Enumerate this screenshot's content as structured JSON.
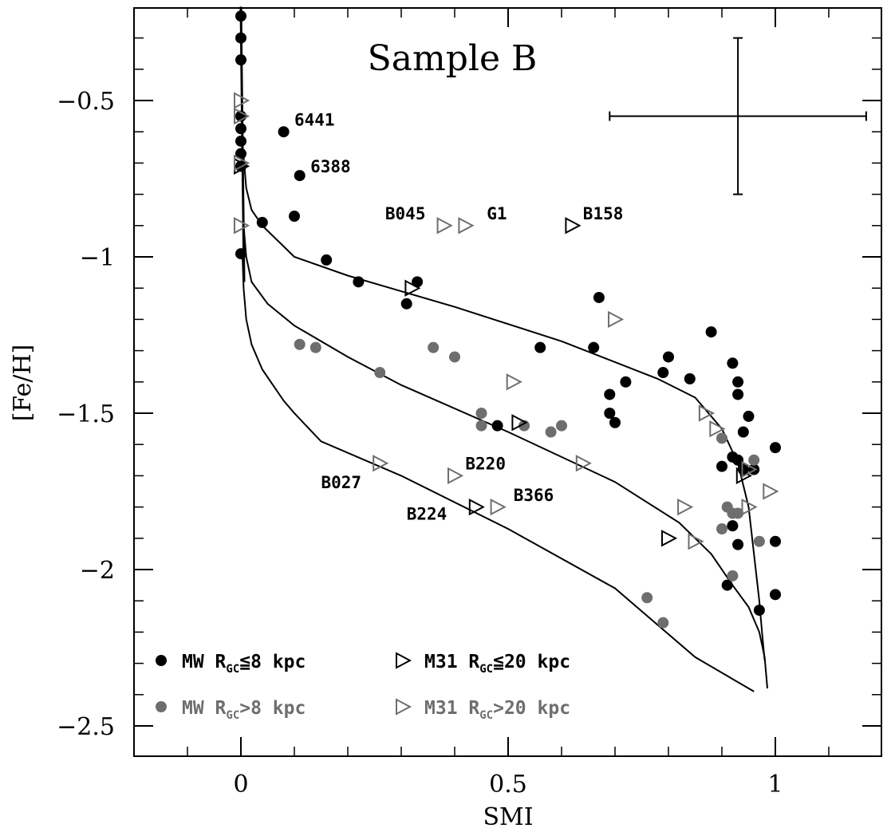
{
  "chart_data": {
    "type": "scatter",
    "title": "Sample B",
    "xlabel": "SMI",
    "ylabel": "[Fe/H]",
    "xlim": [
      -0.2,
      1.2
    ],
    "ylim": [
      -2.6,
      -0.2
    ],
    "xticks": [
      {
        "value": 0,
        "label": "0"
      },
      {
        "value": 0.5,
        "label": "0.5"
      },
      {
        "value": 1,
        "label": "1"
      }
    ],
    "yticks": [
      {
        "value": -0.5,
        "label": "-0.5"
      },
      {
        "value": -1,
        "label": "-1"
      },
      {
        "value": -1.5,
        "label": "-1.5"
      },
      {
        "value": -2,
        "label": "-2"
      },
      {
        "value": -2.5,
        "label": "-2.5"
      }
    ],
    "x_minor_step": 0.1,
    "y_minor_step": 0.1,
    "colors": {
      "black": "#000000",
      "gray": "#6e6e6e"
    },
    "error_bar": {
      "x": 0.93,
      "y": -0.55,
      "xerr": 0.24,
      "yerr": 0.25
    },
    "series": [
      {
        "name": "MW R_GC≤8 kpc",
        "marker": "circle",
        "color": "black",
        "x": [
          0,
          0,
          0,
          0,
          0,
          0,
          0,
          0,
          0,
          0,
          0.08,
          0.11,
          0.1,
          0.04,
          0.16,
          0.22,
          0.33,
          0.31,
          0.67,
          0.56,
          0.66,
          0.88,
          0.8,
          0.79,
          0.84,
          0.72,
          0.69,
          0.69,
          0.7,
          0.48,
          0.92,
          0.93,
          0.93,
          0.95,
          0.94,
          0.9,
          0.92,
          0.93,
          0.94,
          0.96,
          1,
          0.92,
          0.93,
          0.91,
          0.97,
          1,
          1
        ],
        "y": [
          -0.23,
          -0.3,
          -0.37,
          -0.55,
          -0.59,
          -0.63,
          -0.67,
          -0.71,
          -0.99,
          -0.71,
          -0.6,
          -0.74,
          -0.87,
          -0.89,
          -1.01,
          -1.08,
          -1.08,
          -1.15,
          -1.13,
          -1.29,
          -1.29,
          -1.24,
          -1.32,
          -1.37,
          -1.39,
          -1.4,
          -1.44,
          -1.5,
          -1.53,
          -1.54,
          -1.34,
          -1.4,
          -1.44,
          -1.51,
          -1.56,
          -1.67,
          -1.64,
          -1.65,
          -1.68,
          -1.68,
          -1.61,
          -1.86,
          -1.92,
          -2.05,
          -2.13,
          -2.08,
          -1.91
        ]
      },
      {
        "name": "MW R_GC>8 kpc",
        "marker": "circle",
        "color": "gray",
        "x": [
          0.11,
          0.14,
          0.26,
          0.36,
          0.4,
          0.45,
          0.45,
          0.53,
          0.58,
          0.6,
          0.9,
          0.91,
          0.92,
          0.92,
          0.9,
          0.93,
          0.97,
          0.96,
          0.76,
          0.79
        ],
        "y": [
          -1.28,
          -1.29,
          -1.37,
          -1.29,
          -1.32,
          -1.5,
          -1.54,
          -1.54,
          -1.56,
          -1.54,
          -1.58,
          -1.8,
          -1.82,
          -2.02,
          -1.87,
          -1.82,
          -1.91,
          -1.65,
          -2.09,
          -2.17
        ]
      },
      {
        "name": "M31 R_GC≤20 kpc",
        "marker": "triangle-right",
        "color": "black",
        "x": [
          0,
          0.32,
          0.52,
          0.62,
          0.44,
          0.8,
          0.94
        ],
        "y": [
          -0.71,
          -1.1,
          -1.53,
          -0.9,
          -1.8,
          -1.9,
          -1.7
        ]
      },
      {
        "name": "M31 R_GC>20 kpc",
        "marker": "triangle-right",
        "color": "gray",
        "x": [
          0,
          0,
          0,
          0,
          0.38,
          0.42,
          0.7,
          0.51,
          0.26,
          0.4,
          0.48,
          0.64,
          0.87,
          0.89,
          0.83,
          0.85,
          0.95,
          0.95,
          0.99
        ],
        "y": [
          -0.5,
          -0.55,
          -0.7,
          -0.9,
          -0.9,
          -0.9,
          -1.2,
          -1.4,
          -1.66,
          -1.7,
          -1.8,
          -1.66,
          -1.5,
          -1.55,
          -1.8,
          -1.91,
          -1.68,
          -1.8,
          -1.75
        ]
      }
    ],
    "model_curves": [
      {
        "name": "model-line-vertical",
        "x": [
          0,
          0.002,
          0.004,
          0.006
        ],
        "y": [
          -0.2,
          -0.5,
          -0.8,
          -1.08
        ]
      },
      {
        "name": "model-curve-upper",
        "x": [
          0.005,
          0.01,
          0.02,
          0.04,
          0.07,
          0.1,
          0.2,
          0.4,
          0.6,
          0.78,
          0.85,
          0.9,
          0.93,
          0.95,
          0.96,
          0.97,
          0.975,
          0.98
        ],
        "y": [
          -0.68,
          -0.78,
          -0.85,
          -0.9,
          -0.95,
          -1,
          -1.06,
          -1.16,
          -1.27,
          -1.39,
          -1.45,
          -1.55,
          -1.66,
          -1.8,
          -1.95,
          -2.1,
          -2.2,
          -2.29
        ]
      },
      {
        "name": "model-curve-middle",
        "x": [
          0.005,
          0.01,
          0.02,
          0.05,
          0.1,
          0.2,
          0.3,
          0.5,
          0.7,
          0.82,
          0.88,
          0.92,
          0.95,
          0.97,
          0.98,
          0.985
        ],
        "y": [
          -0.9,
          -1,
          -1.08,
          -1.15,
          -1.22,
          -1.32,
          -1.41,
          -1.56,
          -1.72,
          -1.85,
          -1.95,
          -2.05,
          -2.12,
          -2.2,
          -2.28,
          -2.38
        ]
      },
      {
        "name": "model-curve-lower",
        "x": [
          0.003,
          0.005,
          0.01,
          0.02,
          0.04,
          0.08,
          0.1,
          0.15,
          0.3,
          0.5,
          0.7,
          0.85,
          0.92,
          0.96
        ],
        "y": [
          -1,
          -1.1,
          -1.2,
          -1.28,
          -1.36,
          -1.46,
          -1.5,
          -1.59,
          -1.7,
          -1.87,
          -2.06,
          -2.28,
          -2.35,
          -2.39
        ]
      }
    ],
    "annotations": [
      {
        "text": "6441",
        "x": 0.1,
        "y": -0.58,
        "color": "black"
      },
      {
        "text": "6388",
        "x": 0.13,
        "y": -0.73,
        "color": "black"
      },
      {
        "text": "B045",
        "x": 0.27,
        "y": -0.88,
        "color": "black"
      },
      {
        "text": "G1",
        "x": 0.46,
        "y": -0.88,
        "color": "black"
      },
      {
        "text": "B158",
        "x": 0.64,
        "y": -0.88,
        "color": "black"
      },
      {
        "text": "B027",
        "x": 0.15,
        "y": -1.74,
        "color": "black"
      },
      {
        "text": "B220",
        "x": 0.42,
        "y": -1.68,
        "color": "black"
      },
      {
        "text": "B366",
        "x": 0.51,
        "y": -1.78,
        "color": "black"
      },
      {
        "text": "B224",
        "x": 0.31,
        "y": -1.84,
        "color": "black"
      }
    ],
    "legend": {
      "placement": "bottom-left",
      "entries": [
        {
          "marker": "circle",
          "color": "black",
          "prefix": "MW R",
          "sub": "GC",
          "suffix": "≦8 kpc"
        },
        {
          "marker": "triangle-right",
          "color": "black",
          "prefix": "M31 R",
          "sub": "GC",
          "suffix": "≦20 kpc"
        },
        {
          "marker": "circle",
          "color": "gray",
          "prefix": "MW R",
          "sub": "GC",
          "suffix": ">8 kpc"
        },
        {
          "marker": "triangle-right",
          "color": "gray",
          "prefix": "M31 R",
          "sub": "GC",
          "suffix": ">20 kpc"
        }
      ]
    }
  }
}
